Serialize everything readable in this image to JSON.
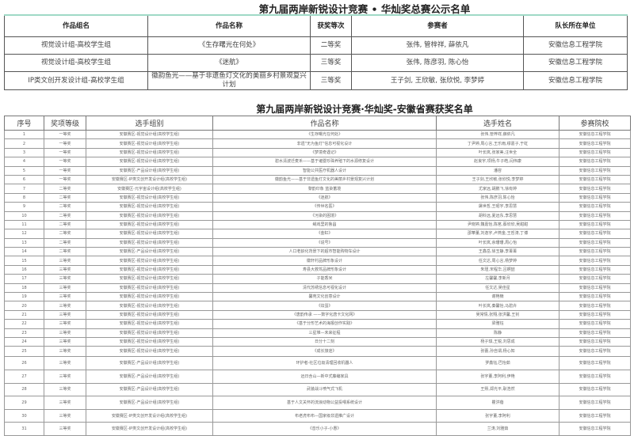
{
  "final_table": {
    "title": "第九届两岸新锐设计竞赛 • 华灿奖总赛公示名单",
    "headers": [
      "作品组名",
      "作品名称",
      "获奖等次",
      "参赛者",
      "队长所在单位"
    ],
    "rows": [
      [
        "视觉设计组-高校学生组",
        "《生存曙光在何处》",
        "二等奖",
        "张伟, 管梓祥, 薛依凡",
        "安徽信息工程学院"
      ],
      [
        "视觉设计组-高校学生组",
        "《迷航》",
        "三等奖",
        "张伟, 陈彦羽, 陈心怡",
        "安徽信息工程学院"
      ],
      [
        "IP类文创开发设计组-高校学生组",
        "徽韵鱼光——基于非遗鱼灯文化的美丽乡村景观复兴计划",
        "三等奖",
        "王子剑, 王欣敏, 张欣悦, 李梦婷",
        "安徽信息工程学院"
      ]
    ]
  },
  "provincial_table": {
    "title": "第九届两岸新锐设计竞赛·华灿奖-安徽省赛获奖名单",
    "headers": [
      "序号",
      "奖项等级",
      "选手组别",
      "作品名称",
      "选手姓名",
      "参赛院校"
    ],
    "rows": [
      [
        "1",
        "一等奖",
        "安徽赛区-视觉设计组(高校学生组)",
        "《生存曙光在何处》",
        "张伟,管梓祥,薛依凡",
        "安徽信息工程学院"
      ],
      [
        "2",
        "一等奖",
        "安徽赛区-视觉设计组(高校学生组)",
        "非遗\"无为鱼灯\"信息可视化设计",
        "丁尹婷,周心言,王乐雨,缪嘉子,于虹",
        "安徽信息工程学院"
      ],
      [
        "3",
        "一等奖",
        "安徽赛区-视觉设计组(高校学生组)",
        "《梦境奇遇记》",
        "叶长岚,张家美,汪世全",
        "安徽信息工程学院"
      ],
      [
        "4",
        "一等奖",
        "安徽赛区-视觉设计组(高校学生组)",
        "碧水清波迁麦禾——基于诸暨珍珠养殖下的水源修复设计",
        "赵良宇,项杨,牛子皓,闫伟康",
        "安徽信息工程学院"
      ],
      [
        "5",
        "一等奖",
        "安徽赛区-产品设计组(高校学生组)",
        "智能公共医疗机器人设计",
        "潘容",
        "安徽信息工程学院"
      ],
      [
        "6",
        "一等奖",
        "安徽赛区-IP类文创开发设计组(高校学生组)",
        "徽韵鱼光——基于非遗鱼灯文化的美丽乡村景观复兴计划",
        "王子剑,王欣敏,张欣悦,李梦婷",
        "安徽信息工程学院"
      ],
      [
        "7",
        "二等奖",
        "安徽赛区-元宇宙设计组(高校学生组)",
        "黎韵印象 蓝染蓄境",
        "尤家远,胡鹏飞,徐有婷",
        "安徽信息工程学院"
      ],
      [
        "8",
        "二等奖",
        "安徽赛区-视觉设计组(高校学生组)",
        "《迷航》",
        "张伟,陈彦羽,陈心怡",
        "安徽信息工程学院"
      ],
      [
        "9",
        "二等奖",
        "安徽赛区-视觉设计组(高校学生组)",
        "《传世名医》",
        "屠世哲,王昭宇,李思慧",
        "安徽信息工程学院"
      ],
      [
        "10",
        "二等奖",
        "安徽赛区-视觉设计组(高校学生组)",
        "《污染的困境》",
        "胡科远,夏远东,李思慧",
        "安徽信息工程学院"
      ],
      [
        "11",
        "二等奖",
        "安徽赛区-视觉设计组(高校学生组)",
        "绳戏里的鲁昌",
        "尹晓婷,魏嘉怡,陈茗,蔡欣欣,吴甜甜",
        "安徽信息工程学院"
      ],
      [
        "12",
        "二等奖",
        "安徽赛区-视觉设计组(高校学生组)",
        "《金缸》",
        "邵華董,刘逸宇,卢燕金,王哲涛,丁博",
        "安徽信息工程学院"
      ],
      [
        "13",
        "二等奖",
        "安徽赛区-视觉设计组(高校学生组)",
        "《说号》",
        "叶长岚,余珊珊,周心怡",
        "安徽信息工程学院"
      ],
      [
        "14",
        "二等奖",
        "安徽赛区-产品设计组(高校学生组)",
        "人口老龄化背景下的超市智能购物车设计",
        "王鑫岳,徐玉静,李菁菁",
        "安徽信息工程学院"
      ],
      [
        "15",
        "三等奖",
        "安徽赛区-视觉设计组(高校学生组)",
        "徽轩村品牌形象设计",
        "任文达,周心言,杨梦婷",
        "安徽信息工程学院"
      ],
      [
        "16",
        "三等奖",
        "安徽赛区-视觉设计组(高校学生组)",
        "寿县大救驾品牌形象设计",
        "朱瑾,宋程华,吕婀喆",
        "安徽信息工程学院"
      ],
      [
        "17",
        "三等奖",
        "安徽赛区-视觉设计组(高校学生组)",
        "子能香米",
        "左馨馨,李新月",
        "安徽信息工程学院"
      ],
      [
        "18",
        "三等奖",
        "安徽赛区-视觉设计组(高校学生组)",
        "清代苏绣信息可视化设计",
        "任文达,吴佳星",
        "安徽信息工程学院"
      ],
      [
        "19",
        "三等奖",
        "安徽赛区-视觉设计组(高校学生组)",
        "馨苑文化创意设计",
        "谢艳楠",
        "安徽信息工程学院"
      ],
      [
        "20",
        "三等奖",
        "安徽赛区-视觉设计组(高校学生组)",
        "《炫蛋》",
        "叶长岚,秦馨怡,马碧卉",
        "安徽信息工程学院"
      ],
      [
        "21",
        "三等奖",
        "安徽赛区-视觉设计组(高校学生组)",
        "《唐韵传承 ——数字化唐卡文化网》",
        "吴常情,张翔,张洪馨,王钊",
        "安徽信息工程学院"
      ],
      [
        "22",
        "三等奖",
        "安徽赛区-视觉设计组(高校学生组)",
        "《基于分形艺术的海报创作实践》",
        "梁雅钰",
        "安徽信息工程学院"
      ],
      [
        "23",
        "三等奖",
        "安徽赛区-视觉设计组(高校学生组)",
        "三星堆—未来征程",
        "陈静",
        "安徽信息工程学院"
      ],
      [
        "24",
        "三等奖",
        "安徽赛区-视觉设计组(高校学生组)",
        "日分十二刻",
        "杨子琪,王锐,刘思成",
        "安徽信息工程学院"
      ],
      [
        "25",
        "三等奖",
        "安徽赛区-视觉设计组(高校学生组)",
        "《成长旅途》",
        "张蕾,孙自谓,杨心知",
        "安徽信息工程学院"
      ],
      [
        "26",
        "三等奖",
        "安徽赛区-产品设计组(高校学生组)",
        "环护者-社区垃圾清理回收机器人",
        "罗鑫钰,巴怡茹",
        "安徽信息工程学院"
      ],
      [
        "27",
        "三等奖",
        "安徽赛区-产品设计组(高校学生组)",
        "远日含山—新中式藤编家具",
        "张宇董,李阿利,伊艳",
        "安徽信息工程学院"
      ],
      [
        "28",
        "三等奖",
        "安徽赛区-产品设计组(高校学生组)",
        "武装战斗喷气式飞机",
        "王熙,郑光平,耿浩然",
        "安徽信息工程学院"
      ],
      [
        "29",
        "三等奖",
        "安徽赛区-产品设计组(高校学生组)",
        "基于人文关怀的流浪动物公益投喂系统设计",
        "瞿洪蓓",
        "安徽信息工程学院"
      ],
      [
        "30",
        "三等奖",
        "安徽赛区-IP类文创开发设计组(高校学生组)",
        "布老虎布布—国家级非遗推广设计",
        "张宇董,李阿利",
        "安徽信息工程学院"
      ],
      [
        "31",
        "三等奖",
        "安徽赛区-IP类文创开发设计组(高校学生组)",
        "《音乐小子-小愚》",
        "兰涛,刘雅茹",
        "安徽信息工程学院"
      ]
    ]
  }
}
